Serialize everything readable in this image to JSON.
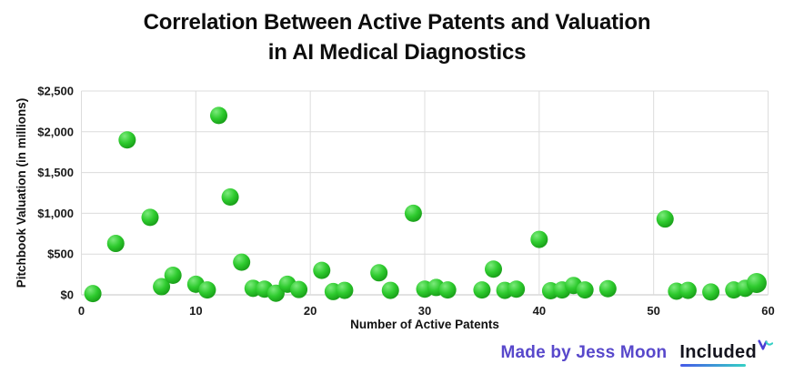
{
  "title": {
    "line1": "Correlation Between Active Patents and Valuation",
    "line2": "in AI Medical Diagnostics"
  },
  "footer": {
    "credit": "Made by Jess Moon",
    "brand": "Included"
  },
  "colors": {
    "accent_purple": "#5848cb",
    "brand_black": "#14141e",
    "dot_green_light": "#7cea7c",
    "dot_green": "#2ecb2e",
    "dot_green_dark": "#129012",
    "grid": "#dcdcdc",
    "axis_line": "#c4c4c4",
    "axis_text": "#1a1a1a",
    "underline_blue": "#4659e8",
    "underline_teal": "#35d0c5"
  },
  "chart_data": {
    "type": "scatter",
    "title": "Correlation Between Active Patents and Valuation in AI Medical Diagnostics",
    "xlabel": "Number of Active Patents",
    "ylabel": "Pitchbook Valuation (in millions)",
    "xlim": [
      0,
      60
    ],
    "ylim": [
      0,
      2500
    ],
    "x_ticks": [
      0,
      10,
      20,
      30,
      40,
      50,
      60
    ],
    "y_ticks": [
      0,
      500,
      1000,
      1500,
      2000,
      2500
    ],
    "y_tick_labels": [
      "$0",
      "$500",
      "$1,000",
      "$1,500",
      "$2,000",
      "$2,500"
    ],
    "grid": true,
    "legend": "none",
    "marker": "3d-sphere-green",
    "points": [
      {
        "x": 1,
        "y": 15
      },
      {
        "x": 3,
        "y": 630
      },
      {
        "x": 4,
        "y": 1900
      },
      {
        "x": 6,
        "y": 950
      },
      {
        "x": 7,
        "y": 100
      },
      {
        "x": 8,
        "y": 240
      },
      {
        "x": 10,
        "y": 130
      },
      {
        "x": 11,
        "y": 60
      },
      {
        "x": 12,
        "y": 2200
      },
      {
        "x": 13,
        "y": 1200
      },
      {
        "x": 14,
        "y": 400
      },
      {
        "x": 15,
        "y": 80
      },
      {
        "x": 16,
        "y": 70
      },
      {
        "x": 17,
        "y": 20
      },
      {
        "x": 18,
        "y": 130
      },
      {
        "x": 19,
        "y": 65
      },
      {
        "x": 21,
        "y": 300
      },
      {
        "x": 22,
        "y": 40
      },
      {
        "x": 23,
        "y": 55
      },
      {
        "x": 26,
        "y": 270
      },
      {
        "x": 27,
        "y": 55
      },
      {
        "x": 29,
        "y": 1000
      },
      {
        "x": 30,
        "y": 70
      },
      {
        "x": 31,
        "y": 90
      },
      {
        "x": 32,
        "y": 60
      },
      {
        "x": 35,
        "y": 60
      },
      {
        "x": 36,
        "y": 315
      },
      {
        "x": 37,
        "y": 55
      },
      {
        "x": 38,
        "y": 70
      },
      {
        "x": 40,
        "y": 680
      },
      {
        "x": 41,
        "y": 50
      },
      {
        "x": 42,
        "y": 60
      },
      {
        "x": 43,
        "y": 115
      },
      {
        "x": 44,
        "y": 60
      },
      {
        "x": 46,
        "y": 75
      },
      {
        "x": 51,
        "y": 930
      },
      {
        "x": 52,
        "y": 45
      },
      {
        "x": 53,
        "y": 55
      },
      {
        "x": 55,
        "y": 35
      },
      {
        "x": 57,
        "y": 60
      },
      {
        "x": 58,
        "y": 80
      },
      {
        "x": 59,
        "y": 145,
        "r": 11
      }
    ]
  }
}
